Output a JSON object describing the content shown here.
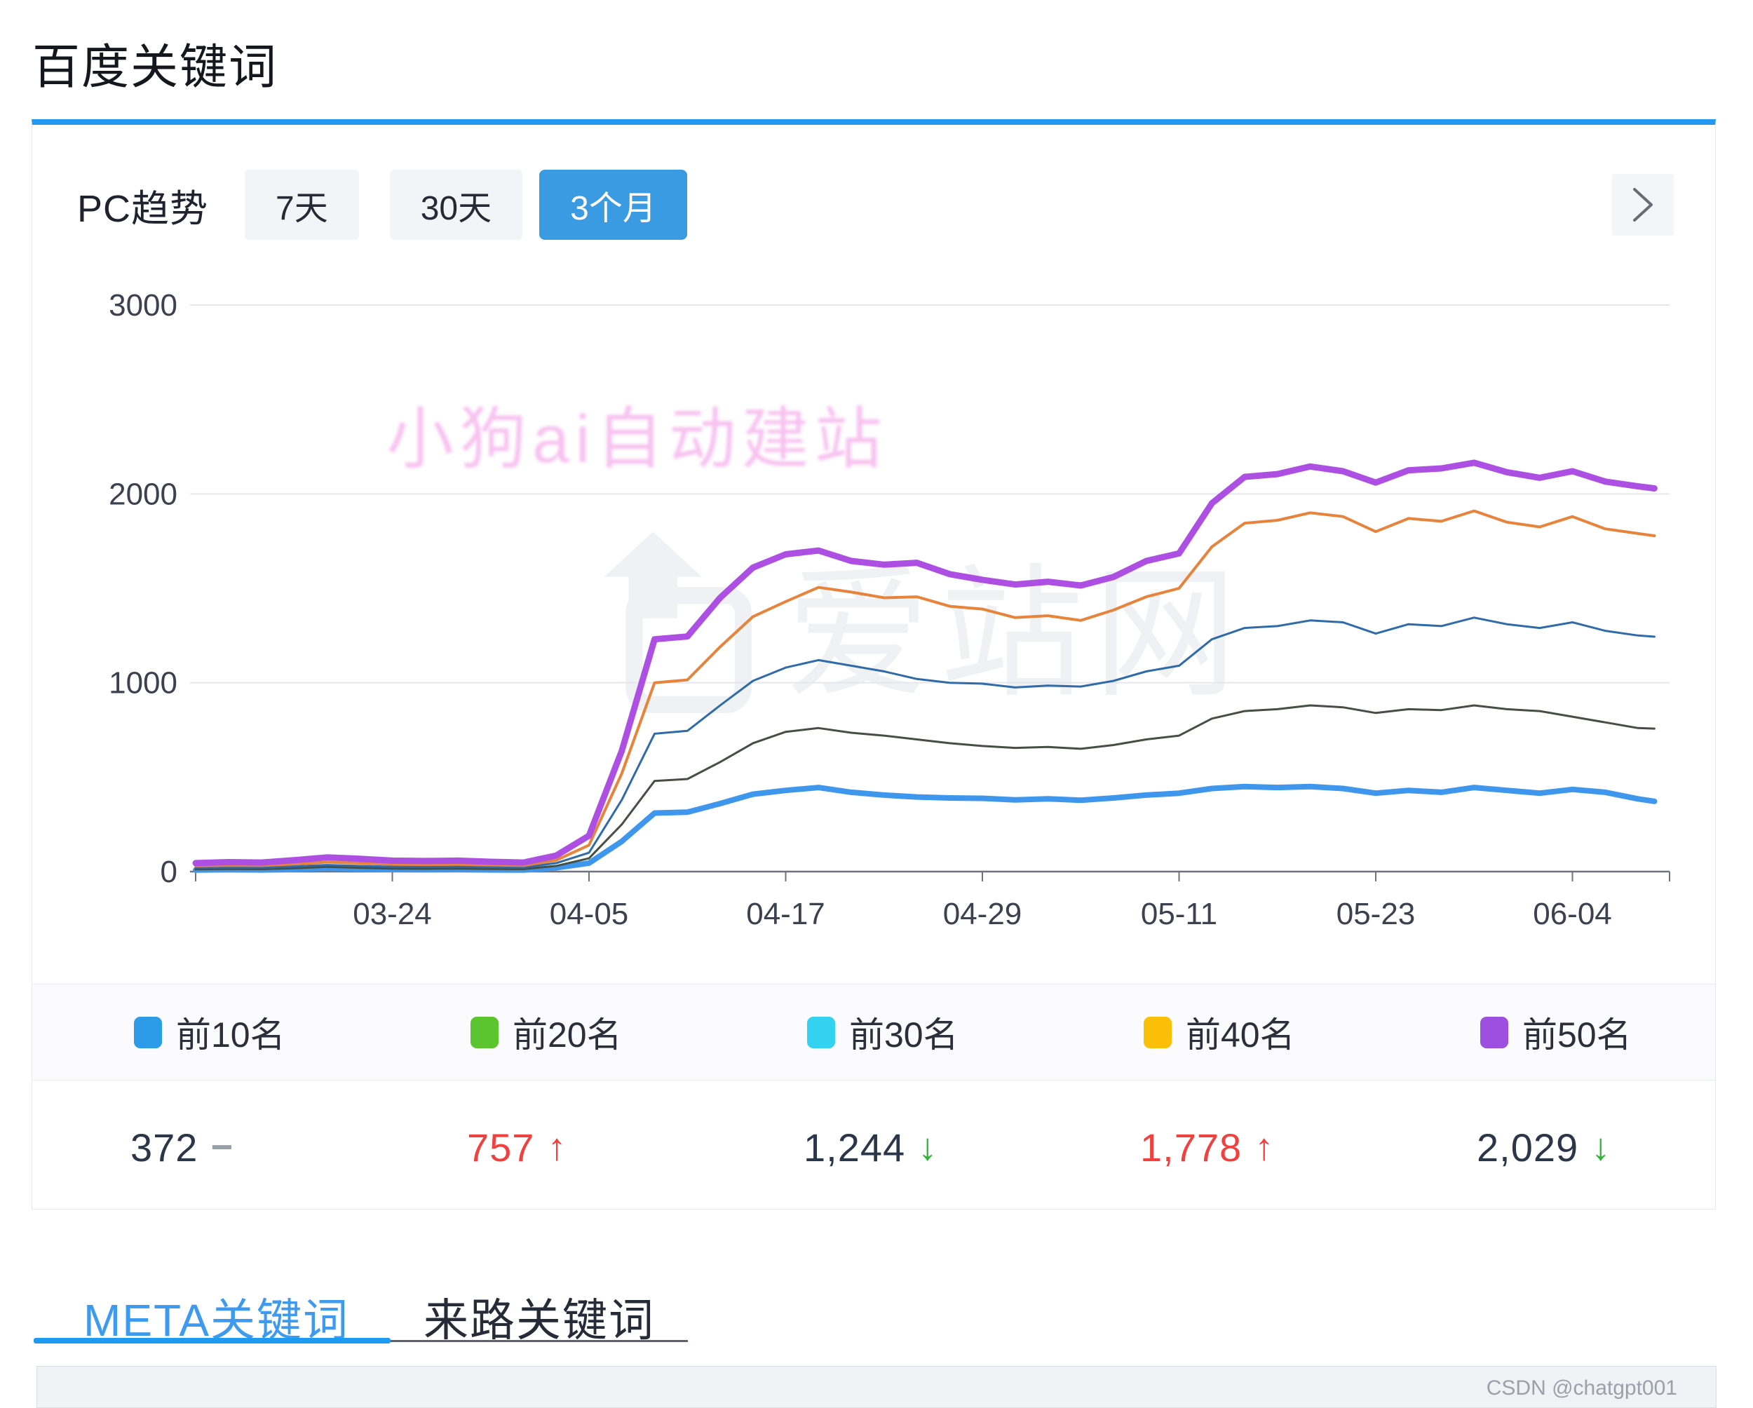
{
  "header": {
    "title": "百度关键词"
  },
  "card": {
    "header": {
      "label": "PC趋势",
      "ranges": [
        {
          "label": "7天",
          "active": false
        },
        {
          "label": "30天",
          "active": false
        },
        {
          "label": "3个月",
          "active": true
        }
      ],
      "chevron_icon": "chevron-right",
      "active_color": "#3B9BE2"
    },
    "accent_color": "#2499F2"
  },
  "watermarks": {
    "pink_text": "小狗ai自动建站",
    "aizhan_logo_icon": "up-arrow-box",
    "aizhan_text": "爱站网"
  },
  "legend": {
    "items": [
      {
        "label": "前10名",
        "color": "#2D9CE8"
      },
      {
        "label": "前20名",
        "color": "#5CC42E"
      },
      {
        "label": "前30名",
        "color": "#32D2F0"
      },
      {
        "label": "前40名",
        "color": "#FBBF08"
      },
      {
        "label": "前50名",
        "color": "#9D50DF"
      }
    ]
  },
  "summary": {
    "cells": [
      {
        "value": "372",
        "trend": "flat"
      },
      {
        "value": "757",
        "trend": "up"
      },
      {
        "value": "1,244",
        "trend": "down"
      },
      {
        "value": "1,778",
        "trend": "up"
      },
      {
        "value": "2,029",
        "trend": "down"
      }
    ],
    "trend_colors": {
      "up": "#F0413F",
      "down": "#2EB52E",
      "flat": "#9AA0AA"
    },
    "number_colors": {
      "up": "#F0413F",
      "normal": "#2B3648"
    }
  },
  "tabs": [
    {
      "label": "META关键词",
      "active": true
    },
    {
      "label": "来路关键词",
      "active": false
    }
  ],
  "footer": {
    "watermark": "CSDN @chatgpt001"
  },
  "chart_data": {
    "type": "line",
    "title": "PC趋势",
    "grid": true,
    "legend_position": "bottom",
    "y_axis": {
      "min": 0,
      "max": 3000,
      "ticks": [
        0,
        1000,
        2000,
        3000
      ]
    },
    "x_tick_labels": [
      "03-24",
      "04-05",
      "04-17",
      "04-29",
      "05-11",
      "05-23",
      "06-04"
    ],
    "dates": [
      "03-12",
      "03-14",
      "03-16",
      "03-18",
      "03-20",
      "03-22",
      "03-24",
      "03-26",
      "03-28",
      "03-30",
      "04-01",
      "04-03",
      "04-05",
      "04-07",
      "04-09",
      "04-11",
      "04-13",
      "04-15",
      "04-17",
      "04-19",
      "04-21",
      "04-23",
      "04-25",
      "04-27",
      "04-29",
      "05-01",
      "05-03",
      "05-05",
      "05-07",
      "05-09",
      "05-11",
      "05-13",
      "05-15",
      "05-17",
      "05-19",
      "05-21",
      "05-23",
      "05-25",
      "05-27",
      "05-29",
      "05-31",
      "06-02",
      "06-04",
      "06-06",
      "06-08",
      "06-09"
    ],
    "series": [
      {
        "name": "前10名",
        "line_color": "#3E97ED",
        "line_width": 8,
        "values": [
          8,
          10,
          9,
          12,
          18,
          14,
          11,
          10,
          11,
          9,
          8,
          20,
          45,
          160,
          310,
          315,
          360,
          410,
          430,
          445,
          420,
          405,
          395,
          390,
          388,
          380,
          385,
          378,
          390,
          405,
          415,
          440,
          450,
          445,
          450,
          440,
          415,
          430,
          420,
          445,
          430,
          415,
          435,
          420,
          385,
          372
        ]
      },
      {
        "name": "前20名",
        "line_color": "#454F44",
        "line_width": 3,
        "values": [
          12,
          14,
          13,
          18,
          25,
          20,
          16,
          15,
          16,
          14,
          13,
          30,
          70,
          250,
          480,
          490,
          580,
          680,
          740,
          760,
          735,
          720,
          700,
          680,
          665,
          655,
          660,
          650,
          670,
          700,
          720,
          810,
          850,
          860,
          880,
          870,
          840,
          860,
          855,
          880,
          860,
          850,
          820,
          790,
          760,
          757
        ]
      },
      {
        "name": "前30名",
        "line_color": "#2F6BA8",
        "line_width": 3,
        "values": [
          20,
          22,
          21,
          28,
          35,
          30,
          26,
          25,
          26,
          24,
          22,
          45,
          100,
          380,
          730,
          745,
          880,
          1010,
          1080,
          1120,
          1090,
          1060,
          1020,
          1000,
          995,
          975,
          985,
          980,
          1010,
          1060,
          1090,
          1230,
          1290,
          1300,
          1330,
          1320,
          1260,
          1310,
          1300,
          1345,
          1310,
          1290,
          1320,
          1275,
          1250,
          1244
        ]
      },
      {
        "name": "前40名",
        "line_color": "#E8833C",
        "line_width": 4,
        "values": [
          30,
          33,
          32,
          40,
          50,
          45,
          38,
          37,
          38,
          35,
          32,
          60,
          140,
          520,
          1000,
          1015,
          1190,
          1350,
          1430,
          1505,
          1480,
          1450,
          1455,
          1405,
          1390,
          1345,
          1355,
          1330,
          1385,
          1455,
          1500,
          1720,
          1845,
          1860,
          1900,
          1880,
          1800,
          1870,
          1855,
          1910,
          1850,
          1825,
          1880,
          1815,
          1790,
          1778
        ]
      },
      {
        "name": "前50名",
        "line_color": "#AE4FE3",
        "line_width": 9,
        "values": [
          45,
          50,
          48,
          60,
          75,
          68,
          58,
          56,
          58,
          52,
          48,
          85,
          190,
          640,
          1230,
          1245,
          1450,
          1610,
          1680,
          1700,
          1645,
          1625,
          1635,
          1575,
          1545,
          1520,
          1535,
          1515,
          1560,
          1645,
          1685,
          1950,
          2090,
          2105,
          2145,
          2120,
          2060,
          2125,
          2135,
          2165,
          2115,
          2085,
          2120,
          2065,
          2040,
          2029
        ]
      }
    ]
  }
}
